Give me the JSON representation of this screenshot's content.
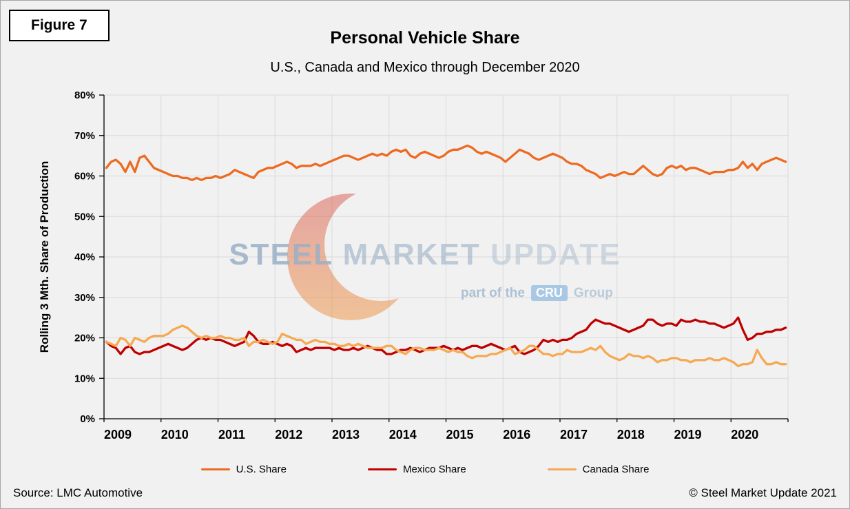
{
  "figure_label": "Figure 7",
  "title": "Personal Vehicle Share",
  "subtitle": "U.S., Canada and Mexico through December 2020",
  "source": "Source: LMC Automotive",
  "copyright": "© Steel Market Update 2021",
  "watermark": {
    "steel": "STEEL",
    "market": "MARKET",
    "update": "UPDATE",
    "part_of_the": "part of the",
    "cru": "CRU",
    "group": "Group"
  },
  "chart_data": {
    "type": "line",
    "title": "Personal Vehicle Share",
    "subtitle": "U.S., Canada and Mexico through December 2020",
    "xlabel": "",
    "ylabel": "Rolling 3 Mth. Share of Production",
    "ylim": [
      0,
      80
    ],
    "y_tick_step": 10,
    "y_tick_format": "percent",
    "grid": true,
    "legend_position": "bottom",
    "x_unit": "month",
    "x_start": "2009-01",
    "x_end": "2020-12",
    "x_years": [
      2009,
      2010,
      2011,
      2012,
      2013,
      2014,
      2015,
      2016,
      2017,
      2018,
      2019,
      2020
    ],
    "series": [
      {
        "name": "U.S. Share",
        "color": "#ED6A21",
        "values": [
          62,
          63.5,
          64,
          63,
          61,
          63.5,
          61,
          64.5,
          65,
          63.5,
          62,
          61.5,
          61,
          60.5,
          60,
          60,
          59.5,
          59.5,
          59,
          59.5,
          59,
          59.5,
          59.5,
          60,
          59.5,
          60,
          60.5,
          61.5,
          61,
          60.5,
          60,
          59.5,
          61,
          61.5,
          62,
          62,
          62.5,
          63,
          63.5,
          63,
          62,
          62.5,
          62.5,
          62.5,
          63,
          62.5,
          63,
          63.5,
          64,
          64.5,
          65,
          65,
          64.5,
          64,
          64.5,
          65,
          65.5,
          65,
          65.5,
          65,
          66,
          66.5,
          66,
          66.5,
          65,
          64.5,
          65.5,
          66,
          65.5,
          65,
          64.5,
          65,
          66,
          66.5,
          66.5,
          67,
          67.5,
          67,
          66,
          65.5,
          66,
          65.5,
          65,
          64.5,
          63.5,
          64.5,
          65.5,
          66.5,
          66,
          65.5,
          64.5,
          64,
          64.5,
          65,
          65.5,
          65,
          64.5,
          63.5,
          63,
          63,
          62.5,
          61.5,
          61,
          60.5,
          59.5,
          60,
          60.5,
          60,
          60.5,
          61,
          60.5,
          60.5,
          61.5,
          62.5,
          61.5,
          60.5,
          60,
          60.5,
          62,
          62.5,
          62,
          62.5,
          61.5,
          62,
          62,
          61.5,
          61,
          60.5,
          61,
          61,
          61,
          61.5,
          61.5,
          62,
          63.5,
          62,
          63,
          61.5,
          63,
          63.5,
          64,
          64.5,
          64,
          63.5
        ]
      },
      {
        "name": "Mexico Share",
        "color": "#C00000",
        "values": [
          19,
          18,
          17.5,
          16,
          17.5,
          18,
          16.5,
          16,
          16.5,
          16.5,
          17,
          17.5,
          18,
          18.5,
          18,
          17.5,
          17,
          17.5,
          18.5,
          19.5,
          20,
          19.5,
          20,
          19.5,
          19.5,
          19,
          18.5,
          18,
          18.5,
          19,
          21.5,
          20.5,
          19,
          18.5,
          18.5,
          19,
          18.5,
          18,
          18.5,
          18,
          16.5,
          17,
          17.5,
          17,
          17.5,
          17.5,
          17.5,
          17.5,
          17,
          17.5,
          17,
          17,
          17.5,
          17,
          17.5,
          18,
          17.5,
          17,
          17,
          16,
          16,
          16.5,
          17,
          17,
          17.5,
          17,
          16.5,
          17,
          17.5,
          17.5,
          17.5,
          18,
          17.5,
          17,
          17.5,
          17,
          17.5,
          18,
          18,
          17.5,
          18,
          18.5,
          18,
          17.5,
          17,
          17.5,
          18,
          16.5,
          16,
          16.5,
          17,
          18,
          19.5,
          19,
          19.5,
          19,
          19.5,
          19.5,
          20,
          21,
          21.5,
          22,
          23.5,
          24.5,
          24,
          23.5,
          23.5,
          23,
          22.5,
          22,
          21.5,
          22,
          22.5,
          23,
          24.5,
          24.5,
          23.5,
          23,
          23.5,
          23.5,
          23,
          24.5,
          24,
          24,
          24.5,
          24,
          24,
          23.5,
          23.5,
          23,
          22.5,
          23,
          23.5,
          25,
          22,
          19.5,
          20,
          21,
          21,
          21.5,
          21.5,
          22,
          22,
          22.5
        ]
      },
      {
        "name": "Canada Share",
        "color": "#F5A952",
        "values": [
          19,
          18.5,
          18,
          20,
          19.5,
          18,
          20,
          19.5,
          19,
          20,
          20.5,
          20.5,
          20.5,
          21,
          22,
          22.5,
          23,
          22.5,
          21.5,
          20.5,
          20,
          20.5,
          20,
          20,
          20.5,
          20,
          20,
          19.5,
          19.5,
          20,
          18,
          19,
          19,
          19.5,
          19,
          18.5,
          19,
          21,
          20.5,
          20,
          19.5,
          19.5,
          18.5,
          19,
          19.5,
          19,
          19,
          18.5,
          18.5,
          18,
          18,
          18.5,
          18,
          18.5,
          18,
          17.5,
          17.5,
          17.5,
          17.5,
          18,
          18,
          17,
          16.5,
          16,
          17,
          17.5,
          17.5,
          17,
          17,
          17,
          17.5,
          17,
          16.5,
          17,
          16.5,
          16.5,
          15.5,
          15,
          15.5,
          15.5,
          15.5,
          16,
          16,
          16.5,
          17,
          17.5,
          16,
          16.5,
          17,
          18,
          18,
          17,
          16,
          16,
          15.5,
          16,
          16,
          17,
          16.5,
          16.5,
          16.5,
          17,
          17.5,
          17,
          18,
          16.5,
          15.5,
          15,
          14.5,
          15,
          16,
          15.5,
          15.5,
          15,
          15.5,
          15,
          14,
          14.5,
          14.5,
          15,
          15,
          14.5,
          14.5,
          14,
          14.5,
          14.5,
          14.5,
          15,
          14.5,
          14.5,
          15,
          14.5,
          14,
          13,
          13.5,
          13.5,
          14,
          17,
          15,
          13.5,
          13.5,
          14,
          13.5,
          13.5
        ]
      }
    ]
  }
}
